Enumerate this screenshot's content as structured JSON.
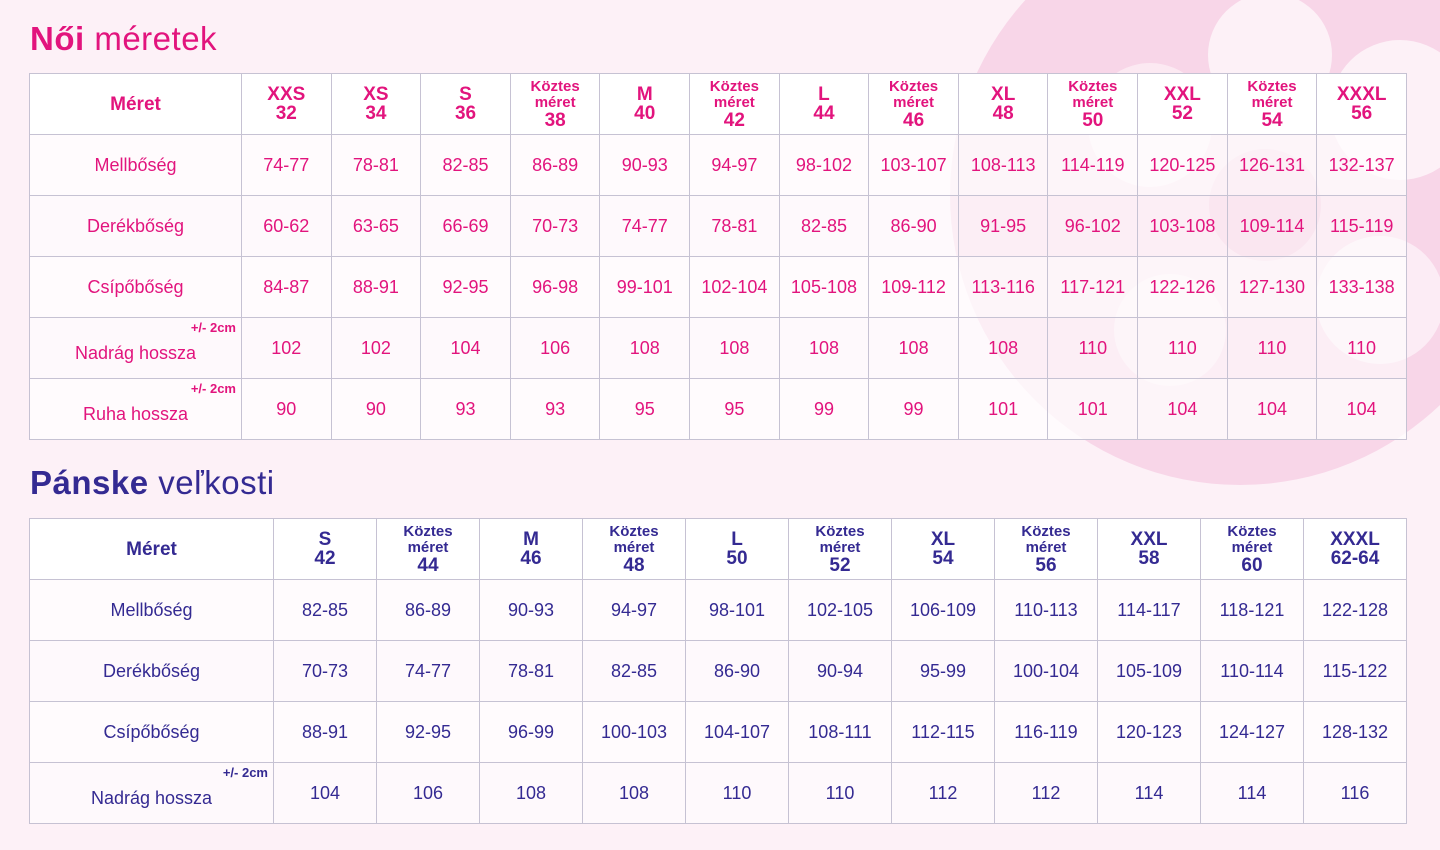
{
  "women": {
    "title_bold": "Női",
    "title_rest": "méretek",
    "header_label": "Méret",
    "sizes": [
      {
        "main": "XXS",
        "num": "32"
      },
      {
        "main": "XS",
        "num": "34"
      },
      {
        "main": "S",
        "num": "36"
      },
      {
        "sub1": "Köztes",
        "sub2": "méret",
        "num": "38"
      },
      {
        "main": "M",
        "num": "40"
      },
      {
        "sub1": "Köztes",
        "sub2": "méret",
        "num": "42"
      },
      {
        "main": "L",
        "num": "44"
      },
      {
        "sub1": "Köztes",
        "sub2": "méret",
        "num": "46"
      },
      {
        "main": "XL",
        "num": "48"
      },
      {
        "sub1": "Köztes",
        "sub2": "méret",
        "num": "50"
      },
      {
        "main": "XXL",
        "num": "52"
      },
      {
        "sub1": "Köztes",
        "sub2": "méret",
        "num": "54"
      },
      {
        "main": "XXXL",
        "num": "56"
      }
    ],
    "rows": [
      {
        "label": "Mellbőség",
        "values": [
          "74-77",
          "78-81",
          "82-85",
          "86-89",
          "90-93",
          "94-97",
          "98-102",
          "103-107",
          "108-113",
          "114-119",
          "120-125",
          "126-131",
          "132-137"
        ]
      },
      {
        "label": "Derékbőség",
        "values": [
          "60-62",
          "63-65",
          "66-69",
          "70-73",
          "74-77",
          "78-81",
          "82-85",
          "86-90",
          "91-95",
          "96-102",
          "103-108",
          "109-114",
          "115-119"
        ]
      },
      {
        "label": "Csípőbőség",
        "values": [
          "84-87",
          "88-91",
          "92-95",
          "96-98",
          "99-101",
          "102-104",
          "105-108",
          "109-112",
          "113-116",
          "117-121",
          "122-126",
          "127-130",
          "133-138"
        ]
      },
      {
        "label": "Nadrág hossza",
        "tolerance": "+/- 2cm",
        "values": [
          "102",
          "102",
          "104",
          "106",
          "108",
          "108",
          "108",
          "108",
          "108",
          "110",
          "110",
          "110",
          "110"
        ]
      },
      {
        "label": "Ruha hossza",
        "tolerance": "+/- 2cm",
        "values": [
          "90",
          "90",
          "93",
          "93",
          "95",
          "95",
          "99",
          "99",
          "101",
          "101",
          "104",
          "104",
          "104"
        ]
      }
    ]
  },
  "men": {
    "title_bold": "Pánske",
    "title_rest": "veľkosti",
    "header_label": "Méret",
    "sizes": [
      {
        "main": "S",
        "num": "42"
      },
      {
        "sub1": "Köztes",
        "sub2": "méret",
        "num": "44"
      },
      {
        "main": "M",
        "num": "46"
      },
      {
        "sub1": "Köztes",
        "sub2": "méret",
        "num": "48"
      },
      {
        "main": "L",
        "num": "50"
      },
      {
        "sub1": "Köztes",
        "sub2": "méret",
        "num": "52"
      },
      {
        "main": "XL",
        "num": "54"
      },
      {
        "sub1": "Köztes",
        "sub2": "méret",
        "num": "56"
      },
      {
        "main": "XXL",
        "num": "58"
      },
      {
        "sub1": "Köztes",
        "sub2": "méret",
        "num": "60"
      },
      {
        "main": "XXXL",
        "num": "62-64"
      }
    ],
    "rows": [
      {
        "label": "Mellbőség",
        "values": [
          "82-85",
          "86-89",
          "90-93",
          "94-97",
          "98-101",
          "102-105",
          "106-109",
          "110-113",
          "114-117",
          "118-121",
          "122-128"
        ]
      },
      {
        "label": "Derékbőség",
        "values": [
          "70-73",
          "74-77",
          "78-81",
          "82-85",
          "86-90",
          "90-94",
          "95-99",
          "100-104",
          "105-109",
          "110-114",
          "115-122"
        ]
      },
      {
        "label": "Csípőbőség",
        "values": [
          "88-91",
          "92-95",
          "96-99",
          "100-103",
          "104-107",
          "108-111",
          "112-115",
          "116-119",
          "120-123",
          "124-127",
          "128-132"
        ]
      },
      {
        "label": "Nadrág hossza",
        "tolerance": "+/- 2cm",
        "values": [
          "104",
          "106",
          "108",
          "108",
          "110",
          "110",
          "112",
          "112",
          "114",
          "114",
          "116"
        ]
      }
    ]
  },
  "colors": {
    "women_accent": "#e2147d",
    "men_accent": "#342a92",
    "background": "#fdf1f7",
    "decoration": "#f8d6e7"
  }
}
